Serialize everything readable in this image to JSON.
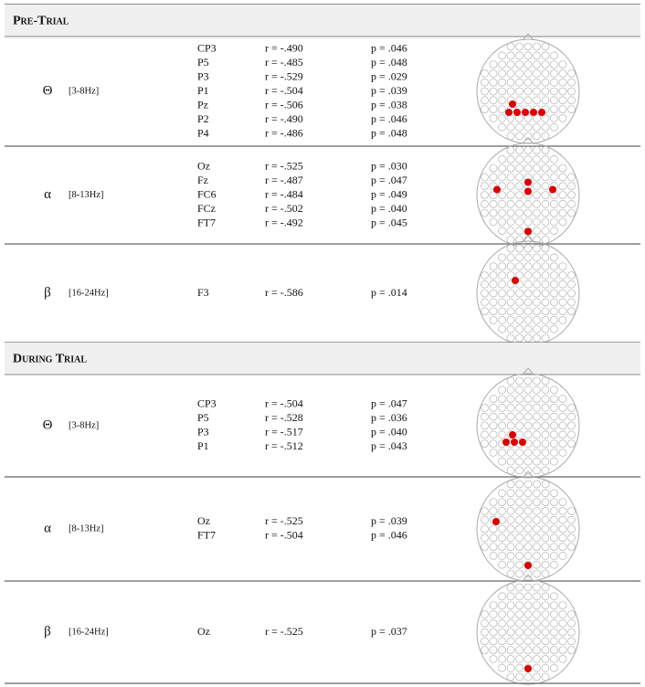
{
  "sections": [
    {
      "title": "Pre-Trial",
      "bands": [
        {
          "symbol": "Θ",
          "range": "[3-8Hz]",
          "rows": [
            [
              "CP3",
              "r = -.490",
              "p = .046"
            ],
            [
              "P5",
              "r = -.485",
              "p = .048"
            ],
            [
              "P3",
              "r = -.529",
              "p = .029"
            ],
            [
              "P1",
              "r = -.504",
              "p = .039"
            ],
            [
              "Pz",
              "r = -.506",
              "p = .038"
            ],
            [
              "P2",
              "r = -.490",
              "p = .046"
            ],
            [
              "P4",
              "r = -.486",
              "p = .048"
            ]
          ]
        },
        {
          "symbol": "α",
          "range": "[8-13Hz]",
          "rows": [
            [
              "Oz",
              "r = -.525",
              "p = .030"
            ],
            [
              "Fz",
              "r = -.487",
              "p = .047"
            ],
            [
              "FC6",
              "r = -.484",
              "p = .049"
            ],
            [
              "FCz",
              "r = -.502",
              "p = .040"
            ],
            [
              "FT7",
              "r = -.492",
              "p = .045"
            ]
          ]
        },
        {
          "symbol": "β",
          "range": "[16-24Hz]",
          "rows": [
            [
              "F3",
              "r = -.586",
              "p = .014"
            ]
          ]
        }
      ]
    },
    {
      "title": "During Trial",
      "bands": [
        {
          "symbol": "Θ",
          "range": "[3-8Hz]",
          "rows": [
            [
              "CP3",
              "r = -.504",
              "p = .047"
            ],
            [
              "P5",
              "r = -.528",
              "p = .036"
            ],
            [
              "P3",
              "r = -.517",
              "p = .040"
            ],
            [
              "P1",
              "r = -.512",
              "p = .043"
            ]
          ]
        },
        {
          "symbol": "α",
          "range": "[8-13Hz]",
          "rows": [
            [
              "Oz",
              "r = -.525",
              "p = .039"
            ],
            [
              "FT7",
              "r = -.504",
              "p = .046"
            ]
          ]
        },
        {
          "symbol": "β",
          "range": "[16-24Hz]",
          "rows": [
            [
              "Oz",
              "r = -.525",
              "p = .037"
            ]
          ]
        }
      ]
    }
  ]
}
